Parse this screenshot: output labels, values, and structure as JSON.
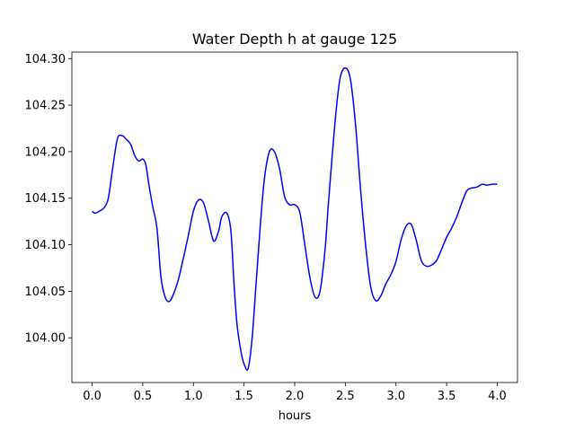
{
  "chart_data": {
    "type": "line",
    "title": "Water Depth h at gauge 125",
    "xlabel": "hours",
    "ylabel": "",
    "xlim": [
      -0.2,
      4.2
    ],
    "ylim": [
      103.952,
      104.307
    ],
    "xticks": [
      0.0,
      0.5,
      1.0,
      1.5,
      2.0,
      2.5,
      3.0,
      3.5,
      4.0
    ],
    "xtick_labels": [
      "0.0",
      "0.5",
      "1.0",
      "1.5",
      "2.0",
      "2.5",
      "3.0",
      "3.5",
      "4.0"
    ],
    "yticks": [
      104.0,
      104.05,
      104.1,
      104.15,
      104.2,
      104.25,
      104.3
    ],
    "ytick_labels": [
      "104.00",
      "104.05",
      "104.10",
      "104.15",
      "104.20",
      "104.25",
      "104.30"
    ],
    "grid": false,
    "line_color": "#0000ff",
    "series": [
      {
        "x": [
          0.0,
          0.03,
          0.07,
          0.12,
          0.16,
          0.2,
          0.25,
          0.3,
          0.33,
          0.38,
          0.42,
          0.46,
          0.5,
          0.53,
          0.56,
          0.6,
          0.64,
          0.68,
          0.72,
          0.76,
          0.8,
          0.85,
          0.9,
          0.95,
          1.0,
          1.05,
          1.1,
          1.15,
          1.2,
          1.25,
          1.28,
          1.33,
          1.37,
          1.4,
          1.43,
          1.47,
          1.5,
          1.54,
          1.58,
          1.62,
          1.66,
          1.7,
          1.75,
          1.8,
          1.85,
          1.9,
          1.95,
          2.0,
          2.05,
          2.1,
          2.15,
          2.2,
          2.25,
          2.3,
          2.33,
          2.37,
          2.41,
          2.45,
          2.5,
          2.55,
          2.6,
          2.65,
          2.7,
          2.75,
          2.8,
          2.85,
          2.9,
          2.95,
          3.0,
          3.05,
          3.1,
          3.15,
          3.2,
          3.25,
          3.3,
          3.35,
          3.4,
          3.45,
          3.5,
          3.55,
          3.6,
          3.65,
          3.7,
          3.75,
          3.8,
          3.85,
          3.9,
          3.95,
          4.0
        ],
        "values": [
          104.136,
          104.134,
          104.136,
          104.14,
          104.15,
          104.18,
          104.214,
          104.217,
          104.214,
          104.208,
          104.196,
          104.19,
          104.192,
          104.186,
          104.165,
          104.14,
          104.118,
          104.065,
          104.044,
          104.039,
          104.046,
          104.062,
          104.085,
          104.11,
          104.136,
          104.148,
          104.145,
          104.125,
          104.104,
          104.115,
          104.13,
          104.134,
          104.115,
          104.06,
          104.015,
          103.985,
          103.972,
          103.967,
          104.0,
          104.06,
          104.12,
          104.17,
          104.2,
          104.2,
          104.182,
          104.152,
          104.143,
          104.143,
          104.135,
          104.1,
          104.065,
          104.044,
          104.05,
          104.095,
          104.14,
          104.195,
          104.245,
          104.28,
          104.29,
          104.278,
          104.23,
          104.16,
          104.1,
          104.055,
          104.04,
          104.045,
          104.058,
          104.068,
          104.082,
          104.105,
          104.12,
          104.122,
          104.105,
          104.083,
          104.077,
          104.078,
          104.083,
          104.095,
          104.108,
          104.118,
          104.13,
          104.145,
          104.158,
          104.161,
          104.162,
          104.165,
          104.164,
          104.165,
          104.165
        ]
      }
    ]
  }
}
